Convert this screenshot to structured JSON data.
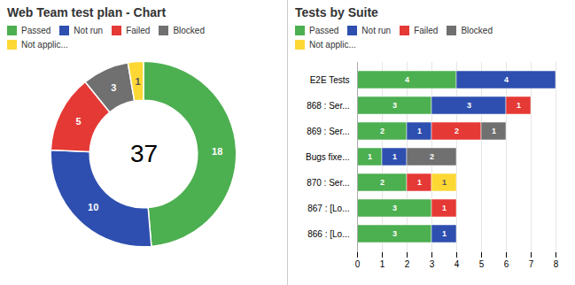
{
  "chart_data": [
    {
      "type": "donut",
      "title": "Web Team test plan - Chart",
      "categories": [
        "Passed",
        "Not run",
        "Failed",
        "Blocked",
        "Not applic..."
      ],
      "values": [
        18,
        10,
        5,
        3,
        1
      ],
      "colors": [
        "#4CAF50",
        "#2E4FAF",
        "#E53935",
        "#707070",
        "#FDD835"
      ],
      "data_labels": true,
      "legend": "top",
      "annotations": [
        "37"
      ]
    },
    {
      "type": "bar",
      "orientation": "horizontal",
      "stacked": true,
      "title": "Tests by Suite",
      "categories": [
        "E2E Tests",
        "868 : Ser...",
        "869 : Ser...",
        "Bugs fixe...",
        "870 : Ser...",
        "867 : [Lo...",
        "866 : [Lo..."
      ],
      "series": [
        {
          "name": "Passed",
          "color": "#4CAF50",
          "values": [
            4,
            3,
            2,
            1,
            2,
            3,
            3
          ]
        },
        {
          "name": "Not run",
          "color": "#2E4FAF",
          "values": [
            4,
            3,
            1,
            1,
            0,
            0,
            1
          ]
        },
        {
          "name": "Failed",
          "color": "#E53935",
          "values": [
            0,
            1,
            2,
            0,
            1,
            1,
            0
          ]
        },
        {
          "name": "Blocked",
          "color": "#707070",
          "values": [
            0,
            0,
            1,
            2,
            0,
            0,
            0
          ]
        },
        {
          "name": "Not applic...",
          "color": "#FDD835",
          "values": [
            0,
            0,
            0,
            0,
            1,
            0,
            0
          ]
        }
      ],
      "xlim": [
        0,
        8
      ],
      "xticks": [
        0,
        1,
        2,
        3,
        4,
        5,
        6,
        7,
        8
      ],
      "grid": true,
      "data_labels": true,
      "legend": "top"
    }
  ]
}
